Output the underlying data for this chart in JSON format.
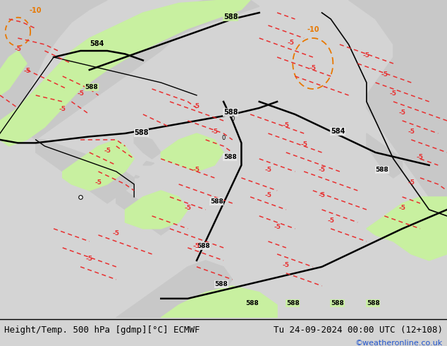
{
  "title_left": "Height/Temp. 500 hPa [gdmp][°C] ECMWF",
  "title_right": "Tu 24-09-2024 00:00 UTC (12+108)",
  "credit": "©weatheronline.co.uk",
  "background_color": "#d4d4d4",
  "map_ocean_color": "#e8e8e8",
  "map_land_color": "#c8c8c8",
  "green_color": "#c8f0a0",
  "black_contour_color": "#000000",
  "red_contour_color": "#e83030",
  "orange_contour_color": "#e87800",
  "gray_contour_color": "#909090",
  "label_fontsize": 7,
  "title_fontsize": 9,
  "credit_color": "#2255cc",
  "figsize": [
    6.34,
    4.9
  ],
  "dpi": 100
}
